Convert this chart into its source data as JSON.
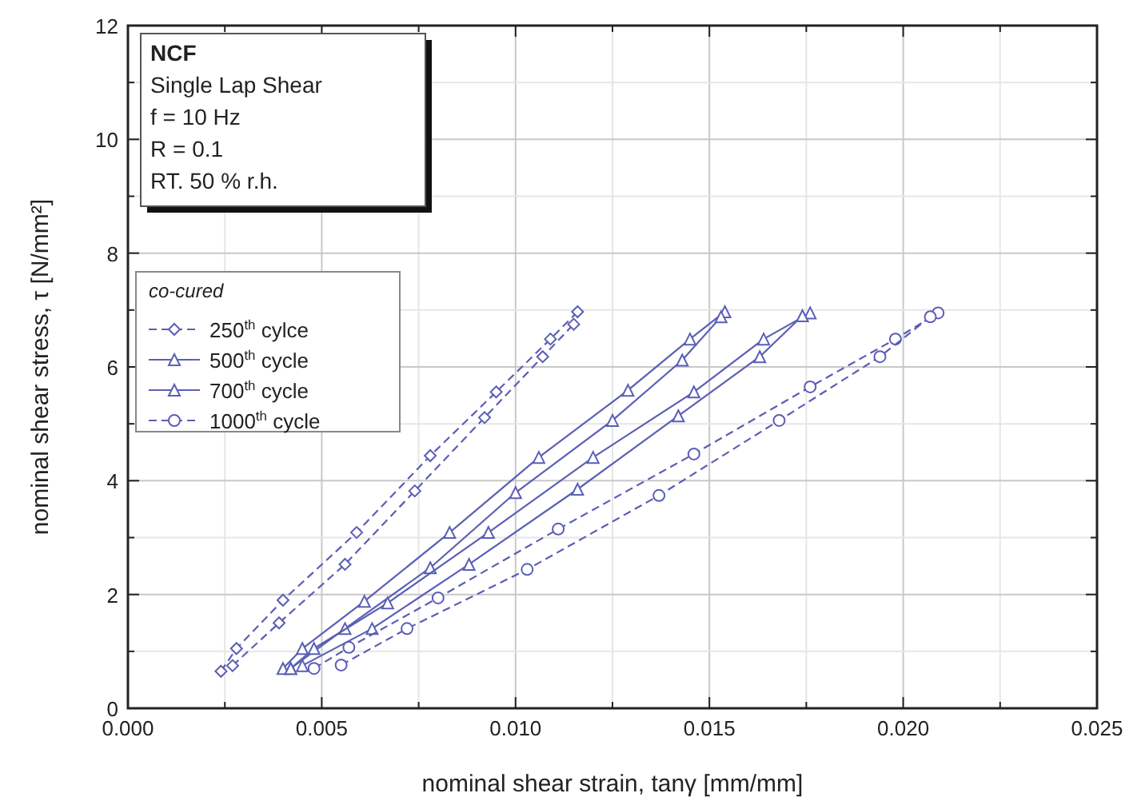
{
  "chart_data": {
    "type": "line",
    "xlabel": "nominal shear strain, tanγ [mm/mm]",
    "ylabel": "nominal shear stress, τ [N/mm²]",
    "xlim": [
      0,
      0.025
    ],
    "xticks": [
      {
        "value": 0,
        "label": "0.000"
      },
      {
        "value": 0.0025,
        "label": null
      },
      {
        "value": 0.005,
        "label": "0.005"
      },
      {
        "value": 0.0075,
        "label": null
      },
      {
        "value": 0.01,
        "label": "0.010"
      },
      {
        "value": 0.0125,
        "label": null
      },
      {
        "value": 0.015,
        "label": "0.015"
      },
      {
        "value": 0.0175,
        "label": null
      },
      {
        "value": 0.02,
        "label": "0.020"
      },
      {
        "value": 0.0225,
        "label": null
      },
      {
        "value": 0.025,
        "label": "0.025"
      }
    ],
    "ylim": [
      0,
      12
    ],
    "yticks": [
      0,
      {
        "value": 1,
        "label": null
      },
      2,
      {
        "value": 3,
        "label": null
      },
      4,
      {
        "value": 5,
        "label": null
      },
      6,
      {
        "value": 7,
        "label": null
      },
      8,
      {
        "value": 9,
        "label": null
      },
      10,
      {
        "value": 11,
        "label": null
      },
      12
    ],
    "grid": true,
    "legend": "left",
    "legend_title": "co-cured",
    "annotations": [
      "NCF",
      "Single Lap Shear",
      "f = 10 Hz",
      "R = 0.1",
      "RT. 50 % r.h."
    ],
    "series": [
      {
        "name": "250$^{th}$ cylce",
        "color": "#5a5fb5",
        "marker": "diamond",
        "line_style": "dashed",
        "x": [
          0.0024,
          0.0028,
          0.004,
          0.0059,
          0.0078,
          0.0095,
          0.0109,
          0.0116
        ],
        "values": [
          0.65,
          1.05,
          1.9,
          3.09,
          4.44,
          5.56,
          6.49,
          6.97
        ]
      },
      {
        "color": "#5a5fb5",
        "marker": "diamond",
        "line_style": "dashed",
        "x": [
          0.0027,
          0.0039,
          0.0056,
          0.0074,
          0.0092,
          0.0107,
          0.0115
        ],
        "values": [
          0.75,
          1.5,
          2.53,
          3.82,
          5.11,
          6.18,
          6.75
        ]
      },
      {
        "name": "500$^{th}$ cycle",
        "color": "#5a5fb5",
        "marker": "triangle",
        "line_style": "solid",
        "x": [
          0.004,
          0.0045,
          0.0061,
          0.0083,
          0.0106,
          0.0129,
          0.0145,
          0.0154
        ],
        "values": [
          0.7,
          1.05,
          1.88,
          3.09,
          4.41,
          5.59,
          6.49,
          6.97
        ]
      },
      {
        "color": "#5a5fb5",
        "marker": "triangle",
        "line_style": "solid",
        "x": [
          0.0042,
          0.0056,
          0.0078,
          0.01,
          0.0125,
          0.0143,
          0.0153
        ],
        "values": [
          0.7,
          1.4,
          2.47,
          3.79,
          5.06,
          6.12,
          6.88
        ]
      },
      {
        "name": "700$^{th}$ cycle",
        "color": "#5a5fb5",
        "marker": "triangle",
        "line_style": "solid",
        "x": [
          0.0042,
          0.0048,
          0.0067,
          0.0093,
          0.012,
          0.0146,
          0.0164,
          0.0176
        ],
        "values": [
          0.7,
          1.05,
          1.85,
          3.09,
          4.41,
          5.56,
          6.49,
          6.95
        ]
      },
      {
        "color": "#5a5fb5",
        "marker": "triangle",
        "line_style": "solid",
        "x": [
          0.0045,
          0.0063,
          0.0088,
          0.0116,
          0.0142,
          0.0163,
          0.0174
        ],
        "values": [
          0.75,
          1.4,
          2.53,
          3.85,
          5.14,
          6.18,
          6.9
        ]
      },
      {
        "name": "1000$^{th}$ cycle",
        "color": "#5a5fb5",
        "marker": "circle",
        "line_style": "dashed",
        "x": [
          0.0048,
          0.0057,
          0.008,
          0.0111,
          0.0146,
          0.0176,
          0.0198,
          0.0209
        ],
        "values": [
          0.7,
          1.07,
          1.94,
          3.15,
          4.47,
          5.65,
          6.49,
          6.95
        ]
      },
      {
        "color": "#5a5fb5",
        "marker": "circle",
        "line_style": "dashed",
        "x": [
          0.0055,
          0.0072,
          0.0103,
          0.0137,
          0.0168,
          0.0194,
          0.0207
        ],
        "values": [
          0.76,
          1.4,
          2.44,
          3.74,
          5.06,
          6.18,
          6.88
        ]
      }
    ]
  }
}
